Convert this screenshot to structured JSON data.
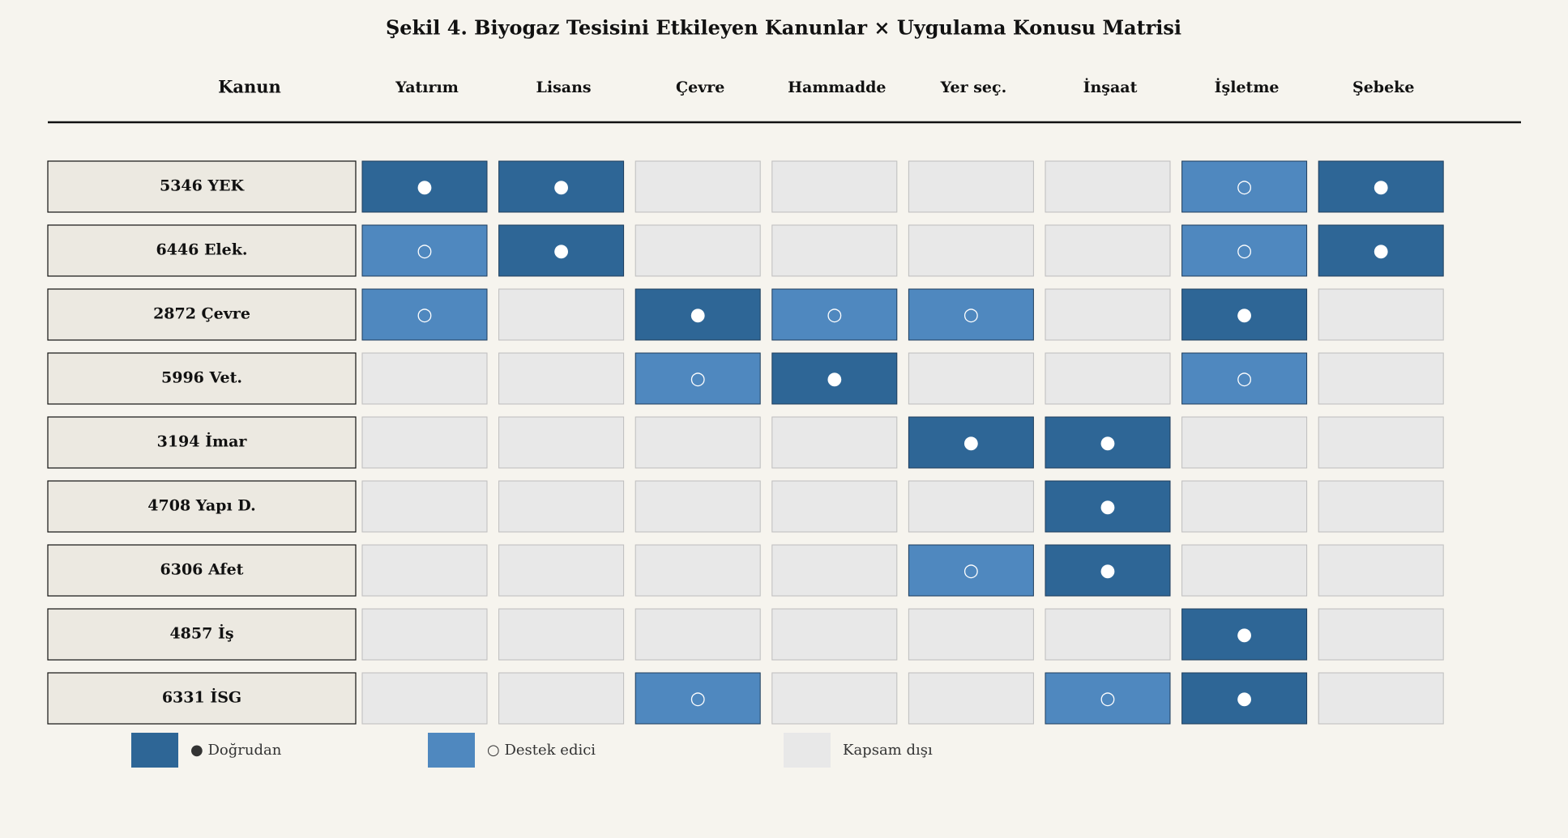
{
  "title": "Şekil 4. Biyogaz Tesisini Etkileyen Kanunlar × Uygulama Konusu Matrisi",
  "header": {
    "row_label": "Kanun",
    "columns": [
      "Yatırım",
      "Lisans",
      "Çevre",
      "Hammadde",
      "Yer seç.",
      "İnşaat",
      "İşletme",
      "Şebeke"
    ]
  },
  "rows": [
    {
      "label": "5346 YEK",
      "cells": [
        "●",
        "●",
        null,
        null,
        null,
        null,
        "○",
        "●"
      ]
    },
    {
      "label": "6446 Elek.",
      "cells": [
        "○",
        "●",
        null,
        null,
        null,
        null,
        "○",
        "●"
      ]
    },
    {
      "label": "2872 Çevre",
      "cells": [
        "○",
        null,
        "●",
        "○",
        "○",
        null,
        "●",
        null
      ]
    },
    {
      "label": "5996 Vet.",
      "cells": [
        null,
        null,
        "○",
        "●",
        null,
        null,
        "○",
        null
      ]
    },
    {
      "label": "3194 İmar",
      "cells": [
        null,
        null,
        null,
        null,
        "●",
        "●",
        null,
        null
      ]
    },
    {
      "label": "4708 Yapı D.",
      "cells": [
        null,
        null,
        null,
        null,
        null,
        "●",
        null,
        null
      ]
    },
    {
      "label": "6306 Afet",
      "cells": [
        null,
        null,
        null,
        null,
        "○",
        "●",
        null,
        null
      ]
    },
    {
      "label": "4857 İş",
      "cells": [
        null,
        null,
        null,
        null,
        null,
        null,
        "●",
        null
      ]
    },
    {
      "label": "6331 İSG",
      "cells": [
        null,
        null,
        "○",
        null,
        null,
        "○",
        "●",
        null
      ]
    }
  ],
  "legend": [
    {
      "symbol": "●",
      "label": "Doğrudan",
      "color": "#2e6696"
    },
    {
      "symbol": "○",
      "label": "Destek edici",
      "color": "#4f88bf"
    },
    {
      "symbol": null,
      "label": "Kapsam dışı",
      "color": "#e8e8e8"
    }
  ]
}
